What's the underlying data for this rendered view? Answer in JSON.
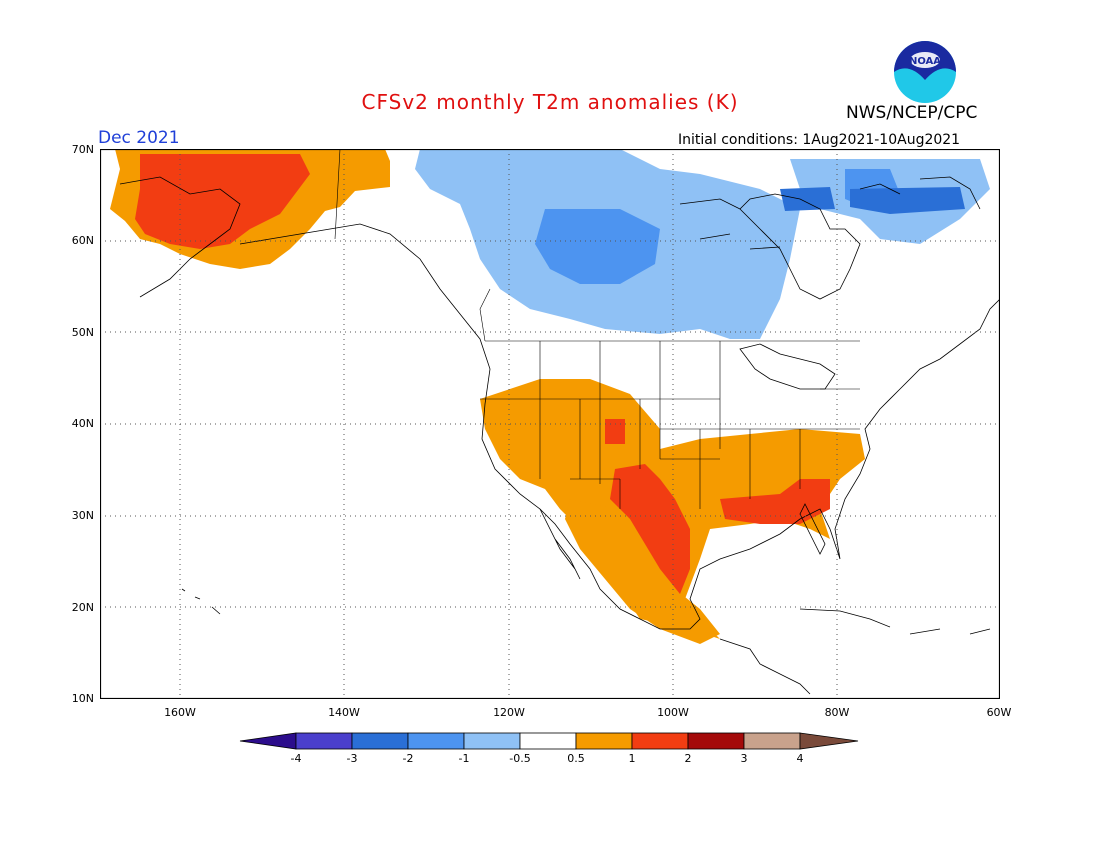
{
  "title": "CFSv2 monthly T2m anomalies (K)",
  "agency": "NWS/NCEP/CPC",
  "logo_text": "NOAA",
  "valid_month": "Dec 2021",
  "initial_conditions": "Initial conditions: 1Aug2021-10Aug2021",
  "latitude_labels": [
    "70N",
    "60N",
    "50N",
    "40N",
    "30N",
    "20N",
    "10N"
  ],
  "longitude_labels": [
    "160W",
    "140W",
    "120W",
    "100W",
    "80W",
    "60W"
  ],
  "colorbar": {
    "labels": [
      "-4",
      "-3",
      "-2",
      "-1",
      "-0.5",
      "0.5",
      "1",
      "2",
      "3",
      "4"
    ],
    "colors": [
      "#2c0d8c",
      "#4a3fcc",
      "#2a6fd6",
      "#4d94f0",
      "#8fc1f5",
      "#ffffff",
      "#f59b00",
      "#f23d12",
      "#a40a0a",
      "#c9a28c",
      "#7a4a3a"
    ]
  },
  "colors": {
    "title": "#e01010",
    "month": "#1f3fd8",
    "warm_1": "#f59b00",
    "warm_2": "#f23d12",
    "cool_1": "#8fc1f5",
    "cool_2": "#4d94f0",
    "cool_3": "#2a6fd6"
  }
}
